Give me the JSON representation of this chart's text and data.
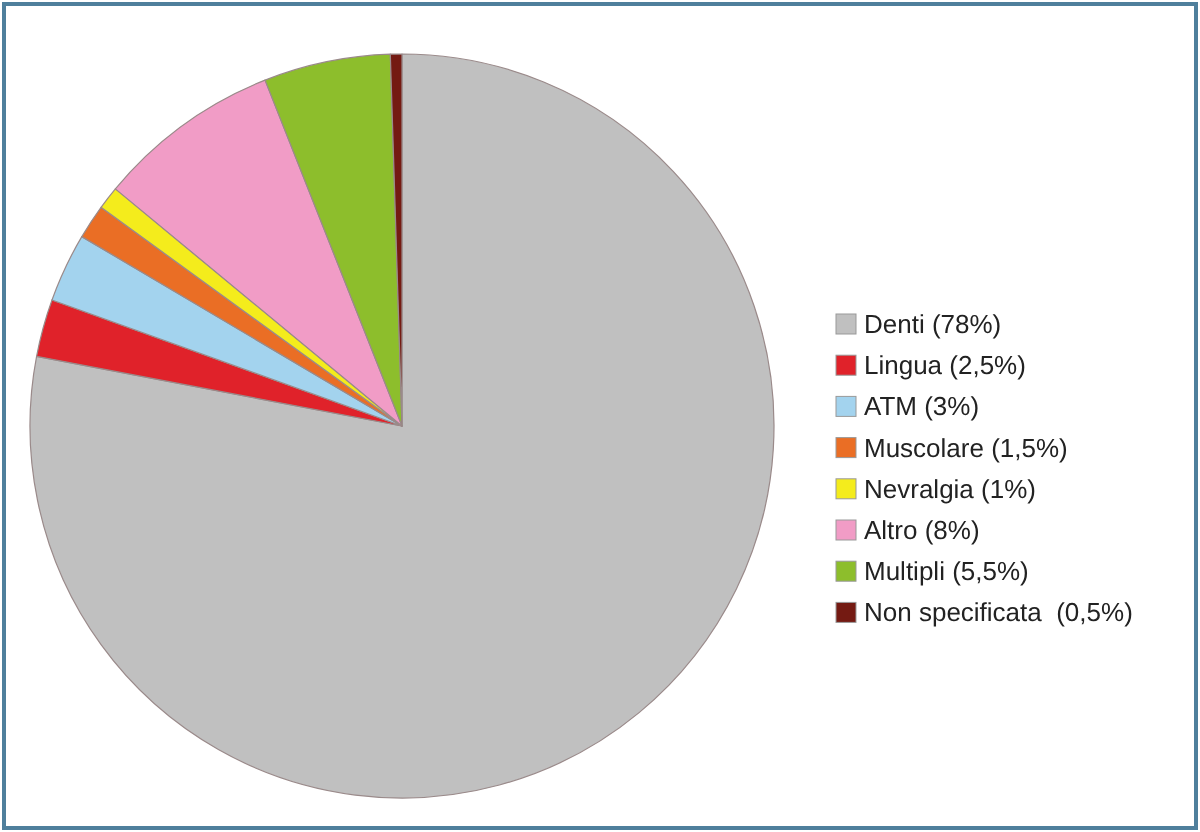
{
  "chart_data": {
    "type": "pie",
    "categories": [
      "Denti (78%)",
      "Lingua (2,5%)",
      "ATM (3%)",
      "Muscolare (1,5%)",
      "Nevralgia (1%)",
      "Altro (8%)",
      "Multipli (5,5%)",
      "Non specificata  (0,5%)"
    ],
    "values": [
      78,
      2.5,
      3,
      1.5,
      1,
      8,
      5.5,
      0.5
    ],
    "colors": [
      "#c0c0c0",
      "#e0222a",
      "#a3d3ee",
      "#ea6e25",
      "#f4ec1c",
      "#f19cc6",
      "#8dbe2c",
      "#741a12"
    ],
    "legend": "right"
  }
}
